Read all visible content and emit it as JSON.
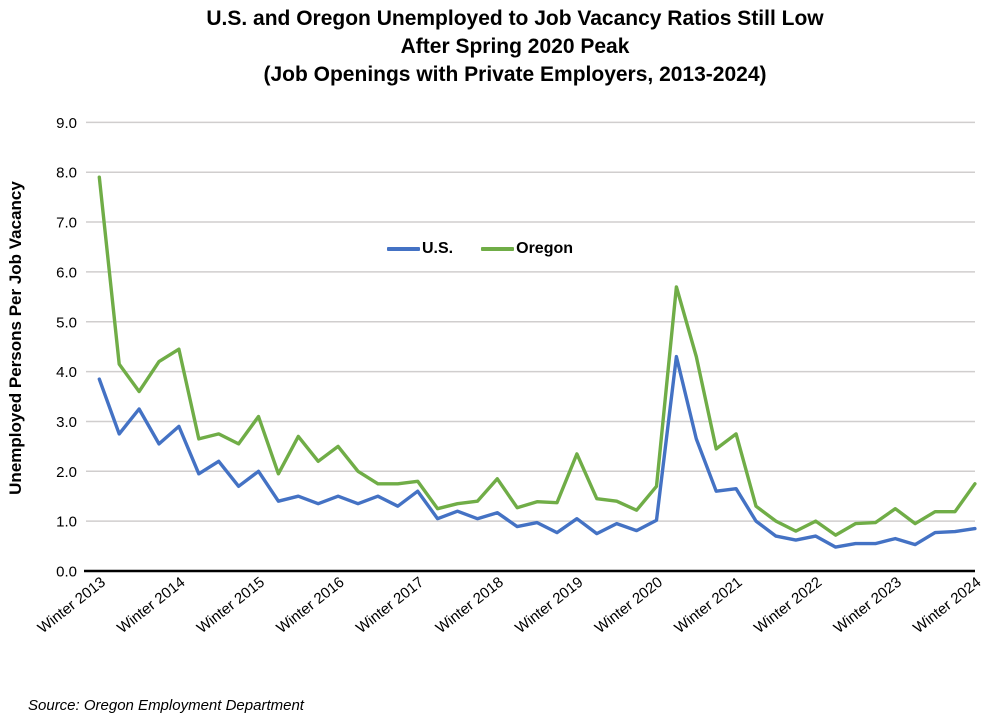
{
  "colors": {
    "us": "#4472C4",
    "oregon": "#70AD47",
    "gridline": "#D0CECE",
    "axis": "#000000",
    "text": "#000000",
    "background": "#FFFFFF"
  },
  "chart_data": {
    "type": "line",
    "title_lines": [
      "U.S. and Oregon Unemployed to Job Vacancy Ratios Still Low",
      "After Spring 2020 Peak",
      "(Job Openings with Private Employers, 2013-2024)"
    ],
    "ylabel": "Unemployed Persons Per Job Vacancy",
    "ylim": [
      0,
      9
    ],
    "y_tick_labels": [
      "0.0",
      "1.0",
      "2.0",
      "3.0",
      "4.0",
      "5.0",
      "6.0",
      "7.0",
      "8.0",
      "9.0"
    ],
    "x_tick_labels": [
      "Winter 2013",
      "Winter 2014",
      "Winter 2015",
      "Winter 2016",
      "Winter 2017",
      "Winter 2018",
      "Winter 2019",
      "Winter 2020",
      "Winter 2021",
      "Winter 2022",
      "Winter 2023",
      "Winter 2024"
    ],
    "points_per_label": 4,
    "grid": true,
    "legend_position": "inside-top-center",
    "series": [
      {
        "key": "us",
        "name": "U.S.",
        "color": "#4472C4",
        "values": [
          3.85,
          2.75,
          3.25,
          2.55,
          2.9,
          1.95,
          2.2,
          1.7,
          2.0,
          1.4,
          1.5,
          1.35,
          1.5,
          1.35,
          1.5,
          1.3,
          1.6,
          1.05,
          1.2,
          1.05,
          1.17,
          0.89,
          0.97,
          0.77,
          1.05,
          0.75,
          0.95,
          0.81,
          1.02,
          4.3,
          2.65,
          1.6,
          1.65,
          1.0,
          0.7,
          0.62,
          0.7,
          0.48,
          0.55,
          0.55,
          0.65,
          0.53,
          0.77,
          0.79,
          0.85
        ]
      },
      {
        "key": "oregon",
        "name": "Oregon",
        "color": "#70AD47",
        "values": [
          7.9,
          4.15,
          3.6,
          4.2,
          4.45,
          2.65,
          2.75,
          2.55,
          3.1,
          1.95,
          2.7,
          2.2,
          2.5,
          2.0,
          1.75,
          1.75,
          1.8,
          1.25,
          1.35,
          1.4,
          1.85,
          1.27,
          1.39,
          1.37,
          2.35,
          1.45,
          1.4,
          1.22,
          1.7,
          5.7,
          4.3,
          2.45,
          2.75,
          1.3,
          1.0,
          0.8,
          1.0,
          0.72,
          0.95,
          0.97,
          1.25,
          0.95,
          1.19,
          1.19,
          1.75
        ]
      }
    ],
    "source": "Source: Oregon Employment Department"
  }
}
